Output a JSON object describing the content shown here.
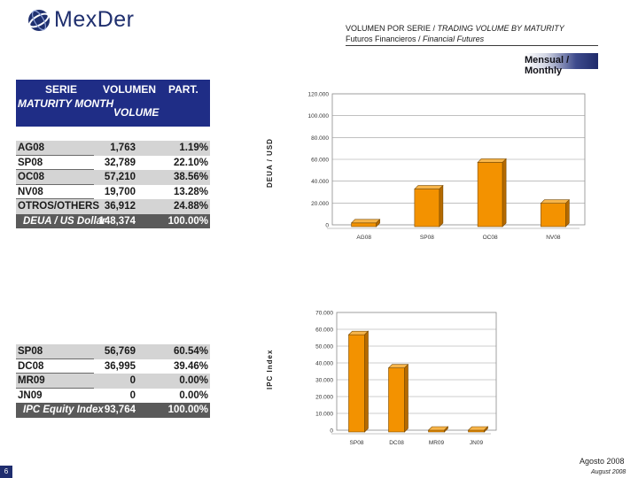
{
  "brand": {
    "name": "MexDer"
  },
  "header": {
    "line1_es": "VOLUMEN POR SERIE / ",
    "line1_en": "TRADING VOLUME BY MATURITY",
    "line2_es": "Futuros Financieros / ",
    "line2_en": "Financial Futures"
  },
  "period": "Mensual / Monthly",
  "table_usd": {
    "headers": {
      "serie": "SERIE",
      "maturity": "MATURITY MONTH",
      "volumen": "VOLUMEN",
      "volume": "VOLUME",
      "part": "PART."
    },
    "rows": [
      {
        "serie": "AG08",
        "volume": "1,763",
        "part": "1.19%"
      },
      {
        "serie": "SP08",
        "volume": "32,789",
        "part": "22.10%"
      },
      {
        "serie": "OC08",
        "volume": "57,210",
        "part": "38.56%"
      },
      {
        "serie": "NV08",
        "volume": "19,700",
        "part": "13.28%"
      },
      {
        "serie": "OTROS/OTHERS",
        "volume": "36,912",
        "part": "24.88%"
      }
    ],
    "total": {
      "label": "DEUA / US Dollar",
      "volume": "148,374",
      "part": "100.00%"
    }
  },
  "table_ipc": {
    "rows": [
      {
        "serie": "SP08",
        "volume": "56,769",
        "part": "60.54%"
      },
      {
        "serie": "DC08",
        "volume": "36,995",
        "part": "39.46%"
      },
      {
        "serie": "MR09",
        "volume": "0",
        "part": "0.00%"
      },
      {
        "serie": "JN09",
        "volume": "0",
        "part": "0.00%"
      }
    ],
    "total": {
      "label": "IPC Equity Index",
      "volume": "93,764",
      "part": "100.00%"
    }
  },
  "chart_data": [
    {
      "type": "bar",
      "ylabel": "DEUA / USD",
      "categories": [
        "AG08",
        "SP08",
        "OC08",
        "NV08"
      ],
      "values": [
        1763,
        32789,
        57210,
        19700
      ],
      "ylim": [
        0,
        120000
      ],
      "yticks": [
        0,
        20000,
        40000,
        60000,
        80000,
        100000,
        120000
      ],
      "ytick_labels": [
        "0",
        "20.000",
        "40.000",
        "60.000",
        "80.000",
        "100.000",
        "120.000"
      ],
      "bar_color": "#f39200"
    },
    {
      "type": "bar",
      "ylabel": "IPC Index",
      "categories": [
        "SP08",
        "DC08",
        "MR09",
        "JN09"
      ],
      "values": [
        56769,
        36995,
        0,
        0
      ],
      "ylim": [
        0,
        70000
      ],
      "yticks": [
        0,
        10000,
        20000,
        30000,
        40000,
        50000,
        60000,
        70000
      ],
      "ytick_labels": [
        "0",
        "10.000",
        "20.000",
        "30.000",
        "40.000",
        "50.000",
        "60.000",
        "70.000"
      ],
      "bar_color": "#f39200"
    }
  ],
  "footer": {
    "date_es": "Agosto 2008",
    "date_en": "August 2008",
    "page": "6"
  }
}
